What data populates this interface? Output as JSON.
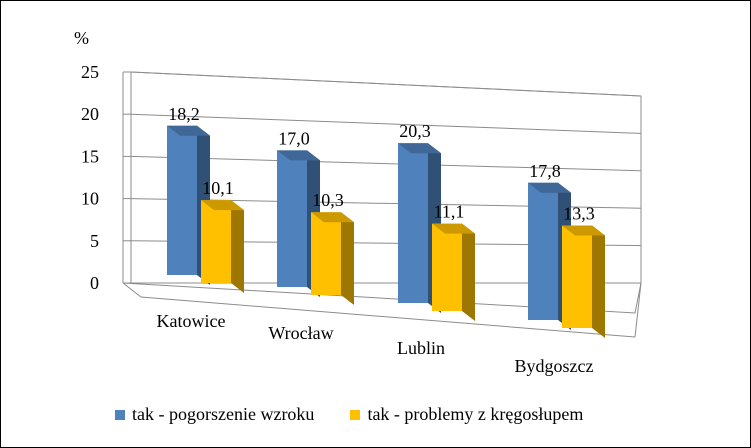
{
  "chart_data": {
    "type": "bar",
    "ylabel": "%",
    "ylim": [
      0,
      25
    ],
    "yticks": [
      0,
      5,
      10,
      15,
      20,
      25
    ],
    "categories": [
      "Katowice",
      "Wrocław",
      "Lublin",
      "Bydgoszcz"
    ],
    "series": [
      {
        "name": "tak - pogorszenie wzroku",
        "values": [
          18.2,
          17.0,
          20.3,
          17.8
        ],
        "labels": [
          "18,2",
          "17,0",
          "20,3",
          "17,8"
        ],
        "color": "#4F81BD"
      },
      {
        "name": "tak - problemy z kręgosłupem",
        "values": [
          10.1,
          10.3,
          11.1,
          13.3
        ],
        "labels": [
          "10,1",
          "10,3",
          "11,1",
          "13,3"
        ],
        "color": "#FFC000"
      }
    ],
    "grid": true,
    "legend_position": "bottom",
    "style": "3d-clustered-column"
  }
}
